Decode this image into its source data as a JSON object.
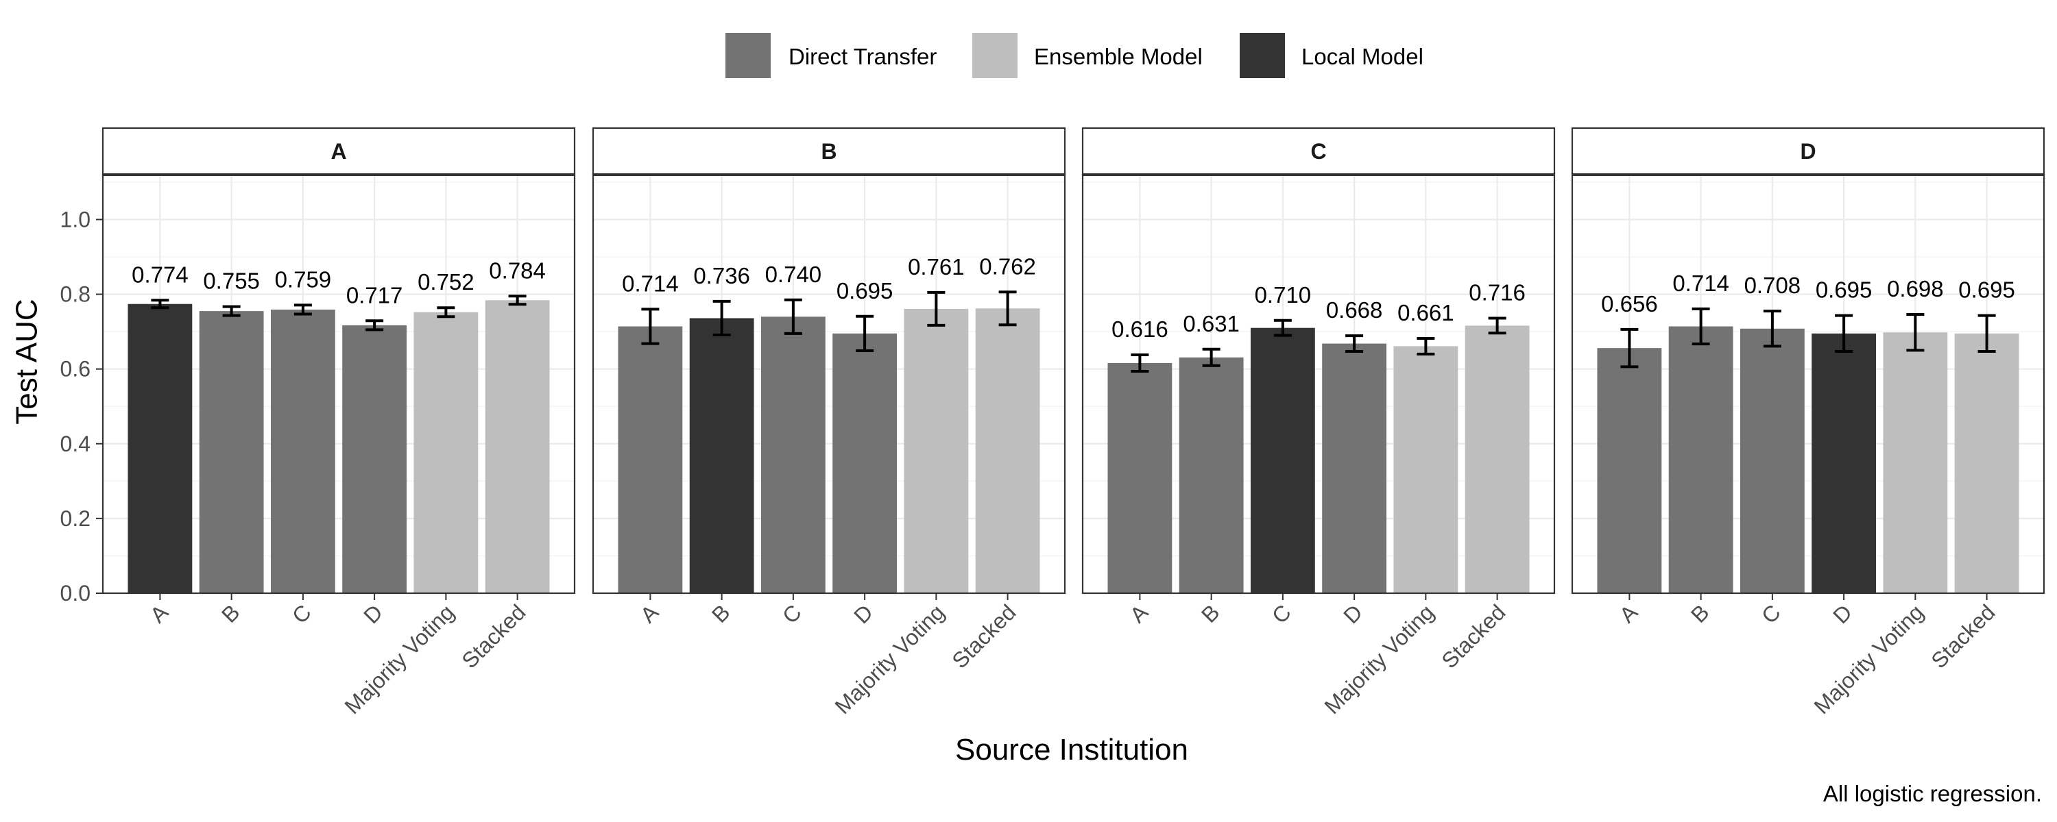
{
  "chart_data": {
    "type": "bar",
    "xlabel": "Source Institution",
    "ylabel": "Test AUC",
    "ylim": [
      0,
      1.12
    ],
    "yticks": [
      "0.0",
      "0.2",
      "0.4",
      "0.6",
      "0.8",
      "1.0"
    ],
    "ytick_values": [
      0,
      0.2,
      0.4,
      0.6,
      0.8,
      1.0
    ],
    "grid": true,
    "legend_position": "top",
    "caption": "All logistic regression.",
    "categories": [
      "A",
      "B",
      "C",
      "D",
      "Majority Voting",
      "Stacked"
    ],
    "legend": [
      {
        "name": "Direct Transfer",
        "color": "#737373"
      },
      {
        "name": "Ensemble Model",
        "color": "#bebebe"
      },
      {
        "name": "Local Model",
        "color": "#333333"
      }
    ],
    "facets": [
      {
        "name": "A",
        "values": [
          0.774,
          0.755,
          0.759,
          0.717,
          0.752,
          0.784
        ],
        "labels": [
          "0.774",
          "0.755",
          "0.759",
          "0.717",
          "0.752",
          "0.784"
        ],
        "errors": [
          0.01,
          0.012,
          0.012,
          0.012,
          0.012,
          0.011
        ],
        "groups": [
          "Local Model",
          "Direct Transfer",
          "Direct Transfer",
          "Direct Transfer",
          "Ensemble Model",
          "Ensemble Model"
        ]
      },
      {
        "name": "B",
        "values": [
          0.714,
          0.736,
          0.74,
          0.695,
          0.761,
          0.762
        ],
        "labels": [
          "0.714",
          "0.736",
          "0.740",
          "0.695",
          "0.761",
          "0.762"
        ],
        "errors": [
          0.046,
          0.045,
          0.045,
          0.046,
          0.044,
          0.044
        ],
        "groups": [
          "Direct Transfer",
          "Local Model",
          "Direct Transfer",
          "Direct Transfer",
          "Ensemble Model",
          "Ensemble Model"
        ]
      },
      {
        "name": "C",
        "values": [
          0.616,
          0.631,
          0.71,
          0.668,
          0.661,
          0.716
        ],
        "labels": [
          "0.616",
          "0.631",
          "0.710",
          "0.668",
          "0.661",
          "0.716"
        ],
        "errors": [
          0.022,
          0.022,
          0.02,
          0.021,
          0.021,
          0.02
        ],
        "groups": [
          "Direct Transfer",
          "Direct Transfer",
          "Local Model",
          "Direct Transfer",
          "Ensemble Model",
          "Ensemble Model"
        ]
      },
      {
        "name": "D",
        "values": [
          0.656,
          0.714,
          0.708,
          0.695,
          0.698,
          0.695
        ],
        "labels": [
          "0.656",
          "0.714",
          "0.708",
          "0.695",
          "0.698",
          "0.695"
        ],
        "errors": [
          0.05,
          0.047,
          0.047,
          0.048,
          0.048,
          0.048
        ],
        "groups": [
          "Direct Transfer",
          "Direct Transfer",
          "Direct Transfer",
          "Local Model",
          "Ensemble Model",
          "Ensemble Model"
        ]
      }
    ]
  }
}
